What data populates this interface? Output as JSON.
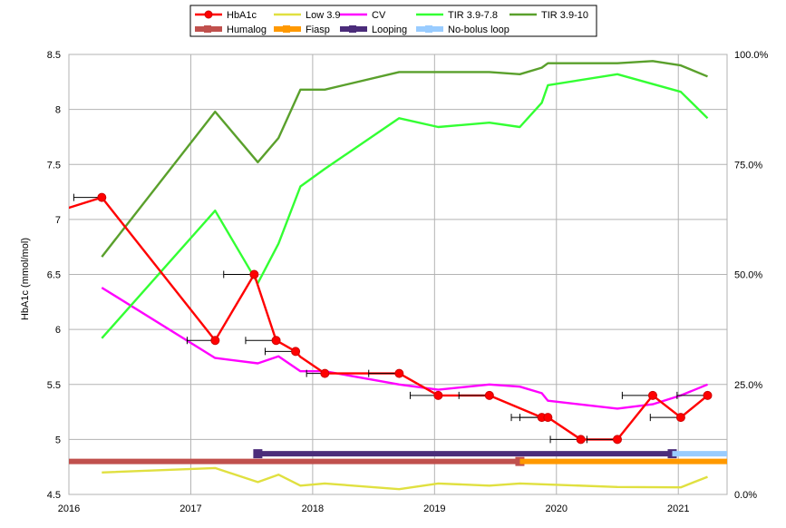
{
  "chart_data": {
    "type": "line",
    "ylabel": "HbA1c (mmol/mol)",
    "xlim": [
      2016,
      2021.4
    ],
    "ylim_left": [
      4.5,
      8.5
    ],
    "ylim_right": [
      0,
      100
    ],
    "grid": true,
    "legend_position": "top-center",
    "x_tick_labels": [
      "2016",
      "2017",
      "2018",
      "2019",
      "2020",
      "2021"
    ],
    "x_tick_values": [
      2016,
      2017,
      2018,
      2019,
      2020,
      2021
    ],
    "y_left_ticks": [
      "4.5",
      "5",
      "5.5",
      "6",
      "6.5",
      "7",
      "7.5",
      "8",
      "8.5"
    ],
    "y_left_values": [
      4.5,
      5,
      5.5,
      6,
      6.5,
      7,
      7.5,
      8,
      8.5
    ],
    "y_right_ticks": [
      "0.0%",
      "25.0%",
      "50.0%",
      "75.0%",
      "100.0%"
    ],
    "y_right_values": [
      0,
      25,
      50,
      75,
      100
    ],
    "series": [
      {
        "name": "HbA1c",
        "color": "#ff0000",
        "axis": "left",
        "markers": true,
        "x": [
          2015.98,
          2016.27,
          2017.2,
          2017.52,
          2017.7,
          2017.86,
          2017.9,
          2018.1,
          2018.71,
          2019.03,
          2019.45,
          2019.88,
          2019.93,
          2020.2,
          2020.5,
          2020.79,
          2021.02,
          2021.24
        ],
        "y": [
          7.1,
          7.2,
          5.9,
          6.5,
          5.9,
          5.8,
          5.75,
          5.6,
          5.6,
          5.4,
          5.4,
          5.2,
          5.2,
          5.0,
          5.0,
          5.4,
          5.2,
          5.4
        ],
        "marker_mask": [
          0,
          1,
          1,
          1,
          1,
          1,
          0,
          1,
          1,
          1,
          1,
          1,
          1,
          1,
          1,
          1,
          1,
          1
        ],
        "error_left": [
          null,
          0.23,
          0.23,
          0.25,
          0.25,
          0.25,
          null,
          0.15,
          0.25,
          0.23,
          0.25,
          0.25,
          0.23,
          0.25,
          0.25,
          0.25,
          0.25,
          0.25
        ]
      },
      {
        "name": "Low 3.9",
        "color": "#e0e040",
        "axis": "right",
        "x": [
          2016.27,
          2017.2,
          2017.55,
          2017.72,
          2017.9,
          2018.1,
          2018.71,
          2019.03,
          2019.45,
          2019.7,
          2020.5,
          2021.02,
          2021.24
        ],
        "y": [
          5,
          6,
          2.8,
          4.5,
          2,
          2.5,
          1.2,
          2.5,
          2,
          2.5,
          1.7,
          1.6,
          4
        ]
      },
      {
        "name": "CV",
        "color": "#ff00ff",
        "axis": "right",
        "x": [
          2016.27,
          2017.2,
          2017.55,
          2017.72,
          2017.9,
          2018.1,
          2018.71,
          2019.03,
          2019.45,
          2019.7,
          2019.88,
          2019.93,
          2020.5,
          2020.79,
          2021.02,
          2021.24
        ],
        "y": [
          47,
          31,
          29.8,
          31.4,
          28,
          28,
          25,
          23.8,
          25,
          24.5,
          23,
          21.3,
          19.5,
          20.5,
          22.5,
          25
        ]
      },
      {
        "name": "TIR 3.9-7.8",
        "color": "#33ff33",
        "axis": "right",
        "x": [
          2016.27,
          2017.2,
          2017.55,
          2017.72,
          2017.9,
          2018.1,
          2018.71,
          2019.03,
          2019.45,
          2019.7,
          2019.88,
          2019.93,
          2020.5,
          2021.02,
          2021.24
        ],
        "y": [
          35.5,
          64.5,
          48,
          57,
          70,
          74,
          85.5,
          83.5,
          84.5,
          83.5,
          89,
          93,
          95.5,
          91.5,
          85.5
        ]
      },
      {
        "name": "TIR 3.9-10",
        "color": "#5aa02c",
        "axis": "right",
        "x": [
          2016.27,
          2017.2,
          2017.55,
          2017.72,
          2017.9,
          2018.1,
          2018.71,
          2019.03,
          2019.45,
          2019.7,
          2019.88,
          2019.93,
          2020.5,
          2020.79,
          2021.02,
          2021.24
        ],
        "y": [
          54,
          87,
          75.5,
          81,
          92,
          92,
          96,
          96,
          96,
          95.5,
          97,
          98,
          98,
          98.5,
          97.5,
          95
        ]
      },
      {
        "name": "Humalog",
        "color": "#c0504d",
        "axis": "left",
        "bar": true,
        "x": [
          2016.0,
          2019.7
        ],
        "y": [
          4.8,
          4.8
        ]
      },
      {
        "name": "Fiasp",
        "color": "#ff9900",
        "axis": "left",
        "bar": true,
        "x": [
          2019.7,
          2021.4
        ],
        "y": [
          4.8,
          4.8
        ]
      },
      {
        "name": "Looping",
        "color": "#4b2c7a",
        "axis": "left",
        "bar": true,
        "x": [
          2017.55,
          2020.95
        ],
        "y": [
          4.87,
          4.87
        ]
      },
      {
        "name": "No-bolus loop",
        "color": "#99ccff",
        "axis": "left",
        "bar": true,
        "x": [
          2020.95,
          2021.4
        ],
        "y": [
          4.87,
          4.87
        ]
      }
    ]
  },
  "legend": {
    "items": [
      {
        "label": "HbA1c",
        "color": "#ff0000",
        "style": "line-marker"
      },
      {
        "label": "Low 3.9",
        "color": "#e0e040",
        "style": "line"
      },
      {
        "label": "CV",
        "color": "#ff00ff",
        "style": "line"
      },
      {
        "label": "TIR 3.9-7.8",
        "color": "#33ff33",
        "style": "line"
      },
      {
        "label": "TIR 3.9-10",
        "color": "#5aa02c",
        "style": "line"
      },
      {
        "label": "Humalog",
        "color": "#c0504d",
        "style": "bar"
      },
      {
        "label": "Fiasp",
        "color": "#ff9900",
        "style": "bar"
      },
      {
        "label": "Looping",
        "color": "#4b2c7a",
        "style": "bar"
      },
      {
        "label": "No-bolus loop",
        "color": "#99ccff",
        "style": "bar"
      }
    ]
  }
}
